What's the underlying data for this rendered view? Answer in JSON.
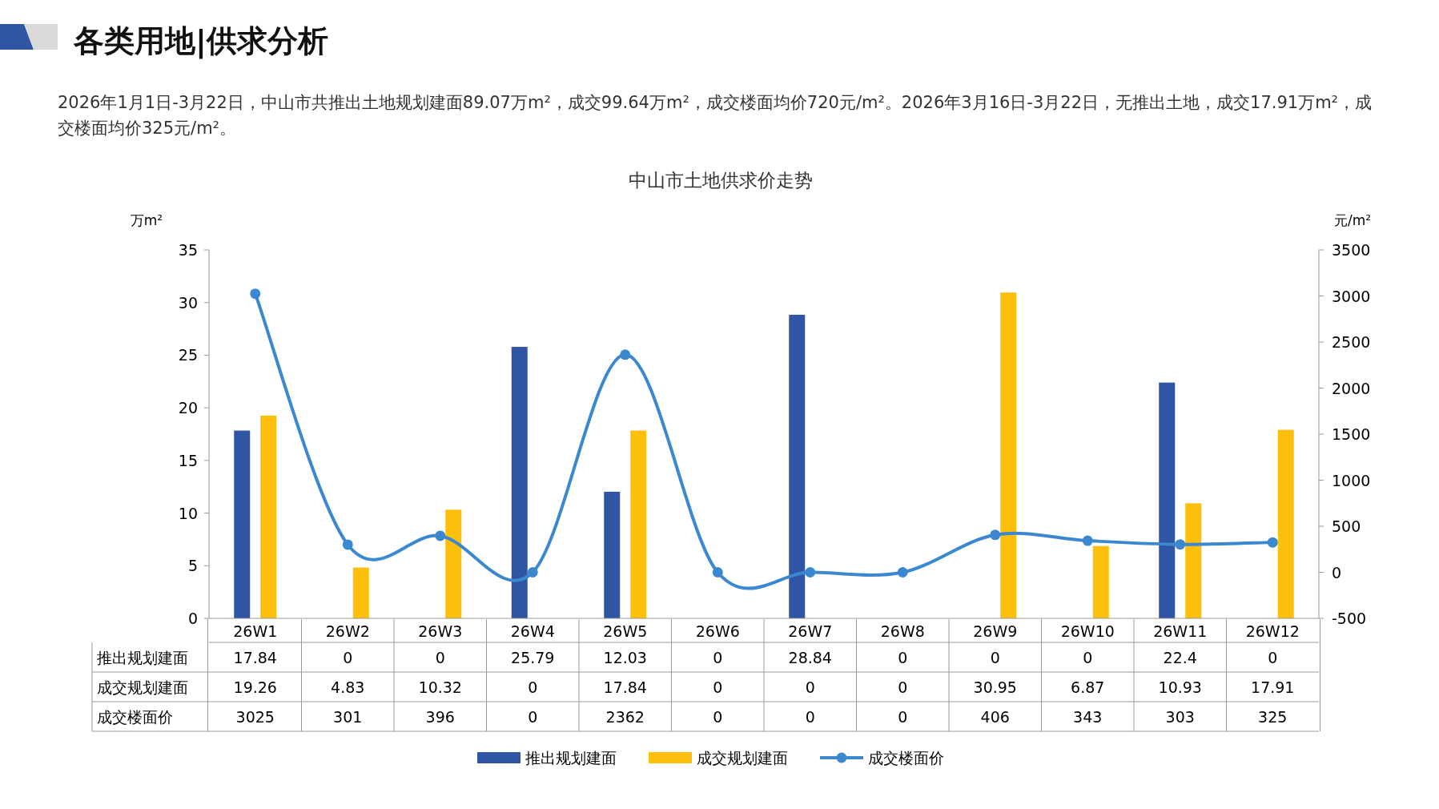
{
  "chart_data": {
    "type": "bar",
    "title": "中山市土地供求价走势",
    "annotations": [
      "各类用地|供求分析",
      "2026年1月1日-3月22日，中山市共推出土地规划建面89.07万m²，成交99.64万m²，成交楼面均价720元/m²。2026年3月16日-3月22日，无推出土地，成交17.91万m²，成交楼面均价325元/m²。"
    ],
    "ylabel": "万m²",
    "y2label": "元/m²",
    "categories": [
      "26W1",
      "26W2",
      "26W3",
      "26W4",
      "26W5",
      "26W6",
      "26W7",
      "26W8",
      "26W9",
      "26W10",
      "26W11",
      "26W12"
    ],
    "series": [
      {
        "name": "推出规划建面",
        "color": "#2f55a4",
        "values": [
          17.84,
          0,
          0,
          25.79,
          12.03,
          0,
          28.84,
          0,
          0,
          0,
          22.4,
          0
        ]
      },
      {
        "name": "成交规划建面",
        "color": "#fbbf0c",
        "values": [
          19.26,
          4.83,
          10.32,
          0,
          17.84,
          0,
          0,
          0,
          30.95,
          6.87,
          10.93,
          17.91
        ]
      },
      {
        "name": "成交楼面价",
        "type": "line",
        "axis": "y2",
        "color": "#3b87d0",
        "marker": "circle",
        "values": [
          3025,
          301,
          396,
          0,
          2362,
          0,
          0,
          0,
          406,
          343,
          303,
          325
        ]
      }
    ],
    "ylim": [
      0,
      35
    ],
    "yticks": [
      0,
      5,
      10,
      15,
      20,
      25,
      30,
      35
    ],
    "y2lim": [
      -500,
      3500
    ],
    "y2ticks": [
      -500,
      0,
      500,
      1000,
      1500,
      2000,
      2500,
      3000,
      3500
    ],
    "data_labels": true,
    "legend": "bottom",
    "grid": false
  }
}
